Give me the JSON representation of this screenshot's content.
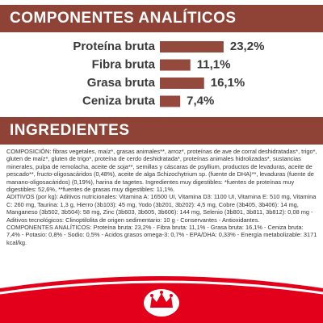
{
  "analytics_header": "COMPONENTES ANALÍTICOS",
  "nutrients": [
    {
      "label": "Proteína bruta",
      "value": 23.2,
      "value_label": "23,2%"
    },
    {
      "label": "Fibra bruta",
      "value": 11.1,
      "value_label": "11,1%"
    },
    {
      "label": "Grasa bruta",
      "value": 16.1,
      "value_label": "16,1%"
    },
    {
      "label": "Ceniza bruta",
      "value": 7.4,
      "value_label": "7,4%"
    }
  ],
  "ingredients_header": "INGREDIENTES",
  "paragraphs": [
    "COMPOSICIÓN: fibras vegetales, maíz*, grasas animales**, arroz*, proteínas de ave de corral deshidratadas*, trigo*, gluten de maíz*, gluten de trigo*, proteína de cerdo deshidratada*, proteínas animales hidrolizadas*, sustancias minerales, pulpa de remolacha, aceite de soja**, semillas y cáscaras de psyllium, productos de levaduras, aceite de pescado**, fructo-oligosacáridos (0,48%), aceite de alga Schizochytrium sp. (fuente de DHA)**, levaduras (fuente de manano-oligosacáridos) (0,19%), harina de tagetes. Ingredientes muy digestibles: *fuentes de proteínas muy digestibles: 52,6%, **fuentes de grasas muy digestibles: 11,1%.",
    "ADITIVOS (por kg): Aditivos nutricionales: Vitamina A: 16500 UI, Vitamina D3: 1100 UI, Vitamina E: 510 mg, Vitamina C: 260 mg, Taurina: 1,3 g, Hierro (3b103): 45 mg, Yodo (3b201, 3b202): 4,5 mg, Cobre (3b405, 3b406): 14 mg, Manganeso (3b502, 3b504): 58 mg, Zinc (3b603, 3b605, 3b606): 144 mg, Selenio (3b801, 3b811, 3b812): 0,08 mg - Aditivos tecnológicos: Clinoptilolita de origen sedimentario: 10 g - Conservantes - Antioxidantes.",
    "COMPONENTES ANALÍTICOS: Proteína bruta: 23,2% - Fibra bruta: 11,1% - Grasa bruta: 16,1% - Ceniza bruta: 7,4% - Potasio: 0,8% - Sodio: 0,5% - Acidos grasos omega-3: 0,7% - EPA/DHA: 0,33% - Energía metabolizable: 3171 kcal/kg."
  ]
}
